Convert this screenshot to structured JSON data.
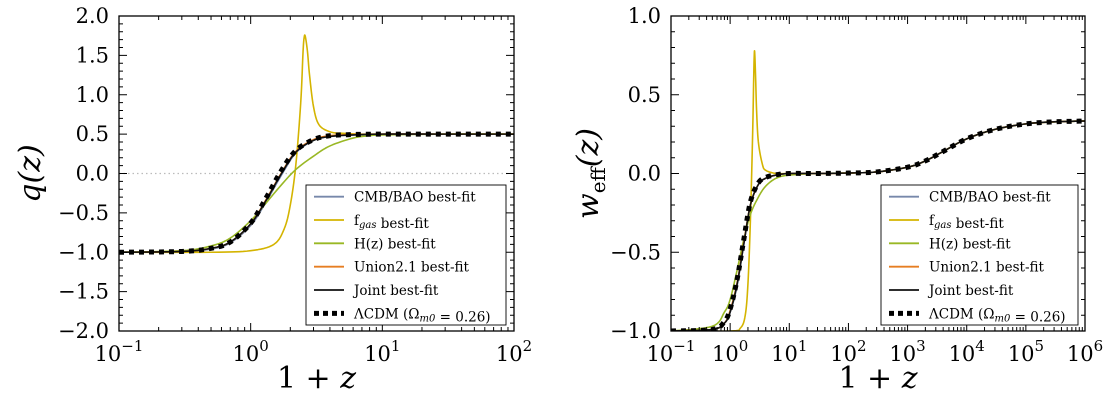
{
  "chart_data": [
    {
      "type": "line",
      "xscale": "log",
      "xlim": [
        0.1,
        100
      ],
      "ylim": [
        -2.0,
        2.0
      ],
      "xlabel": "1 + z",
      "ylabel": "q(z)",
      "xticks": [
        {
          "value": 0.1,
          "base": "10",
          "exp": "−1"
        },
        {
          "value": 1,
          "base": "10",
          "exp": "0"
        },
        {
          "value": 10,
          "base": "10",
          "exp": "1"
        },
        {
          "value": 100,
          "base": "10",
          "exp": "2"
        }
      ],
      "yticks": [
        {
          "value": 2.0,
          "label": "2.0"
        },
        {
          "value": 1.5,
          "label": "1.5"
        },
        {
          "value": 1.0,
          "label": "1.0"
        },
        {
          "value": 0.5,
          "label": "0.5"
        },
        {
          "value": 0.0,
          "label": "0.0"
        },
        {
          "value": -0.5,
          "label": "−0.5"
        },
        {
          "value": -1.0,
          "label": "−1.0"
        },
        {
          "value": -1.5,
          "label": "−1.5"
        },
        {
          "value": -2.0,
          "label": "−2.0"
        }
      ],
      "reference_line": {
        "y": 0.0,
        "style": "dotted",
        "color": "#bbbbbb"
      },
      "legend_position": "lower-right",
      "series": [
        {
          "name": "CMB/BAO best-fit",
          "color": "#7788aa",
          "style": "solid",
          "x": [
            0.1,
            0.3,
            0.5,
            0.7,
            1.0,
            1.3,
            1.7,
            2.2,
            3.0,
            4.0,
            6.0,
            10,
            30,
            100
          ],
          "y": [
            -1.0,
            -0.99,
            -0.96,
            -0.88,
            -0.66,
            -0.37,
            -0.03,
            0.26,
            0.42,
            0.47,
            0.49,
            0.5,
            0.5,
            0.5
          ]
        },
        {
          "name": "f_gas best-fit",
          "color": "#d4b400",
          "style": "solid",
          "x": [
            0.1,
            0.5,
            1.0,
            1.5,
            1.8,
            2.0,
            2.2,
            2.4,
            2.5,
            2.55,
            2.6,
            2.7,
            2.8,
            3.0,
            3.3,
            4.0,
            5.0,
            7.0,
            10,
            100
          ],
          "y": [
            -1.0,
            -1.0,
            -0.98,
            -0.9,
            -0.7,
            -0.4,
            0.1,
            0.9,
            1.55,
            1.73,
            1.74,
            1.55,
            1.25,
            0.85,
            0.62,
            0.53,
            0.51,
            0.5,
            0.5,
            0.5
          ]
        },
        {
          "name": "H(z) best-fit",
          "color": "#99b824",
          "style": "solid",
          "x": [
            0.1,
            0.3,
            0.5,
            0.7,
            1.0,
            1.3,
            1.7,
            2.2,
            3.0,
            4.0,
            6.0,
            8.0,
            10,
            30,
            100
          ],
          "y": [
            -1.0,
            -0.98,
            -0.92,
            -0.82,
            -0.6,
            -0.38,
            -0.15,
            0.05,
            0.22,
            0.35,
            0.45,
            0.48,
            0.49,
            0.5,
            0.5
          ]
        },
        {
          "name": "Union2.1 best-fit",
          "color": "#e67e22",
          "style": "solid",
          "x": [
            0.1,
            0.3,
            0.5,
            0.7,
            1.0,
            1.3,
            1.7,
            2.2,
            3.0,
            4.0,
            6.0,
            10,
            30,
            100
          ],
          "y": [
            -1.0,
            -0.99,
            -0.95,
            -0.87,
            -0.64,
            -0.34,
            0.0,
            0.28,
            0.43,
            0.48,
            0.495,
            0.5,
            0.5,
            0.5
          ]
        },
        {
          "name": "Joint best-fit",
          "color": "#111111",
          "style": "solid",
          "x": [
            0.1,
            0.3,
            0.5,
            0.7,
            1.0,
            1.3,
            1.7,
            2.2,
            3.0,
            4.0,
            6.0,
            10,
            30,
            100
          ],
          "y": [
            -1.0,
            -0.99,
            -0.95,
            -0.87,
            -0.64,
            -0.35,
            -0.01,
            0.27,
            0.42,
            0.47,
            0.49,
            0.5,
            0.5,
            0.5
          ]
        },
        {
          "name": "ΛCDM (Ω_m0 = 0.26)",
          "color": "#000000",
          "style": "dotted",
          "x": [
            0.1,
            0.3,
            0.5,
            0.7,
            1.0,
            1.3,
            1.7,
            2.2,
            3.0,
            4.0,
            6.0,
            10,
            30,
            100
          ],
          "y": [
            -1.0,
            -0.99,
            -0.95,
            -0.87,
            -0.63,
            -0.32,
            0.03,
            0.29,
            0.43,
            0.48,
            0.495,
            0.5,
            0.5,
            0.5
          ]
        }
      ]
    },
    {
      "type": "line",
      "xscale": "log",
      "xlim": [
        0.1,
        1000000
      ],
      "ylim": [
        -1.0,
        1.0
      ],
      "xlabel": "1 + z",
      "ylabel": "w_eff(z)",
      "xticks": [
        {
          "value": 0.1,
          "base": "10",
          "exp": "−1"
        },
        {
          "value": 1,
          "base": "10",
          "exp": "0"
        },
        {
          "value": 10,
          "base": "10",
          "exp": "1"
        },
        {
          "value": 100,
          "base": "10",
          "exp": "2"
        },
        {
          "value": 1000,
          "base": "10",
          "exp": "3"
        },
        {
          "value": 10000,
          "base": "10",
          "exp": "4"
        },
        {
          "value": 100000,
          "base": "10",
          "exp": "5"
        },
        {
          "value": 1000000,
          "base": "10",
          "exp": "6"
        }
      ],
      "yticks": [
        {
          "value": 1.0,
          "label": "1.0"
        },
        {
          "value": 0.5,
          "label": "0.5"
        },
        {
          "value": 0.0,
          "label": "0.0"
        },
        {
          "value": -0.5,
          "label": "−0.5"
        },
        {
          "value": -1.0,
          "label": "−1.0"
        }
      ],
      "legend_position": "lower-right",
      "series": [
        {
          "name": "CMB/BAO best-fit",
          "color": "#7788aa",
          "style": "solid",
          "x": [
            0.1,
            0.5,
            0.8,
            1.0,
            1.3,
            1.7,
            2.2,
            3.0,
            4.0,
            6.0,
            10,
            30,
            100,
            300,
            1000,
            2000,
            4000,
            10000,
            30000,
            100000,
            300000,
            1000000
          ],
          "y": [
            -1.0,
            -0.99,
            -0.95,
            -0.88,
            -0.72,
            -0.45,
            -0.2,
            -0.07,
            -0.03,
            -0.01,
            0.0,
            0.0,
            0.003,
            0.01,
            0.04,
            0.08,
            0.14,
            0.22,
            0.28,
            0.315,
            0.328,
            0.333
          ]
        },
        {
          "name": "f_gas best-fit",
          "color": "#d4b400",
          "style": "solid",
          "x": [
            0.1,
            1.0,
            1.5,
            1.8,
            2.0,
            2.2,
            2.4,
            2.5,
            2.55,
            2.6,
            2.7,
            2.8,
            3.0,
            3.5,
            4.0,
            6.0,
            10,
            30,
            100,
            300,
            1000,
            2000,
            4000,
            10000,
            30000,
            100000,
            300000,
            1000000
          ],
          "y": [
            -1.0,
            -1.0,
            -0.98,
            -0.9,
            -0.7,
            -0.3,
            0.25,
            0.6,
            0.74,
            0.77,
            0.6,
            0.4,
            0.2,
            0.06,
            0.02,
            0.0,
            0.0,
            0.0,
            0.003,
            0.01,
            0.04,
            0.08,
            0.14,
            0.22,
            0.28,
            0.315,
            0.328,
            0.333
          ]
        },
        {
          "name": "H(z) best-fit",
          "color": "#99b824",
          "style": "solid",
          "x": [
            0.1,
            0.5,
            0.8,
            1.0,
            1.3,
            1.7,
            2.2,
            3.0,
            4.0,
            6.0,
            10,
            30,
            100,
            300,
            1000,
            2000,
            4000,
            10000,
            30000,
            100000,
            300000,
            1000000
          ],
          "y": [
            -1.0,
            -0.97,
            -0.88,
            -0.8,
            -0.62,
            -0.42,
            -0.26,
            -0.15,
            -0.08,
            -0.03,
            -0.01,
            0.0,
            0.003,
            0.01,
            0.04,
            0.08,
            0.14,
            0.22,
            0.28,
            0.315,
            0.328,
            0.333
          ]
        },
        {
          "name": "Union2.1 best-fit",
          "color": "#e67e22",
          "style": "solid",
          "x": [
            0.1,
            0.5,
            0.8,
            1.0,
            1.3,
            1.7,
            2.2,
            3.0,
            4.0,
            6.0,
            10,
            30,
            100,
            300,
            1000,
            2000,
            4000,
            10000,
            30000,
            100000,
            300000,
            1000000
          ],
          "y": [
            -1.0,
            -0.99,
            -0.95,
            -0.87,
            -0.7,
            -0.44,
            -0.2,
            -0.07,
            -0.03,
            -0.01,
            0.0,
            0.0,
            0.003,
            0.01,
            0.04,
            0.08,
            0.14,
            0.22,
            0.28,
            0.315,
            0.328,
            0.333
          ]
        },
        {
          "name": "Joint best-fit",
          "color": "#111111",
          "style": "solid",
          "x": [
            0.1,
            0.5,
            0.8,
            1.0,
            1.3,
            1.7,
            2.2,
            3.0,
            4.0,
            6.0,
            10,
            30,
            100,
            300,
            1000,
            2000,
            4000,
            10000,
            30000,
            100000,
            300000,
            1000000
          ],
          "y": [
            -1.0,
            -0.99,
            -0.95,
            -0.88,
            -0.71,
            -0.45,
            -0.2,
            -0.07,
            -0.03,
            -0.01,
            0.0,
            0.0,
            0.003,
            0.01,
            0.04,
            0.08,
            0.14,
            0.22,
            0.28,
            0.315,
            0.328,
            0.333
          ]
        },
        {
          "name": "ΛCDM (Ω_m0 = 0.26)",
          "color": "#000000",
          "style": "dotted",
          "x": [
            0.1,
            0.5,
            0.8,
            1.0,
            1.3,
            1.7,
            2.2,
            3.0,
            4.0,
            6.0,
            10,
            30,
            100,
            300,
            1000,
            2000,
            4000,
            10000,
            30000,
            100000,
            300000,
            1000000
          ],
          "y": [
            -1.0,
            -0.99,
            -0.94,
            -0.86,
            -0.68,
            -0.42,
            -0.18,
            -0.06,
            -0.025,
            -0.008,
            0.0,
            0.0,
            0.003,
            0.01,
            0.04,
            0.08,
            0.14,
            0.22,
            0.28,
            0.315,
            0.328,
            0.333
          ]
        }
      ]
    }
  ]
}
